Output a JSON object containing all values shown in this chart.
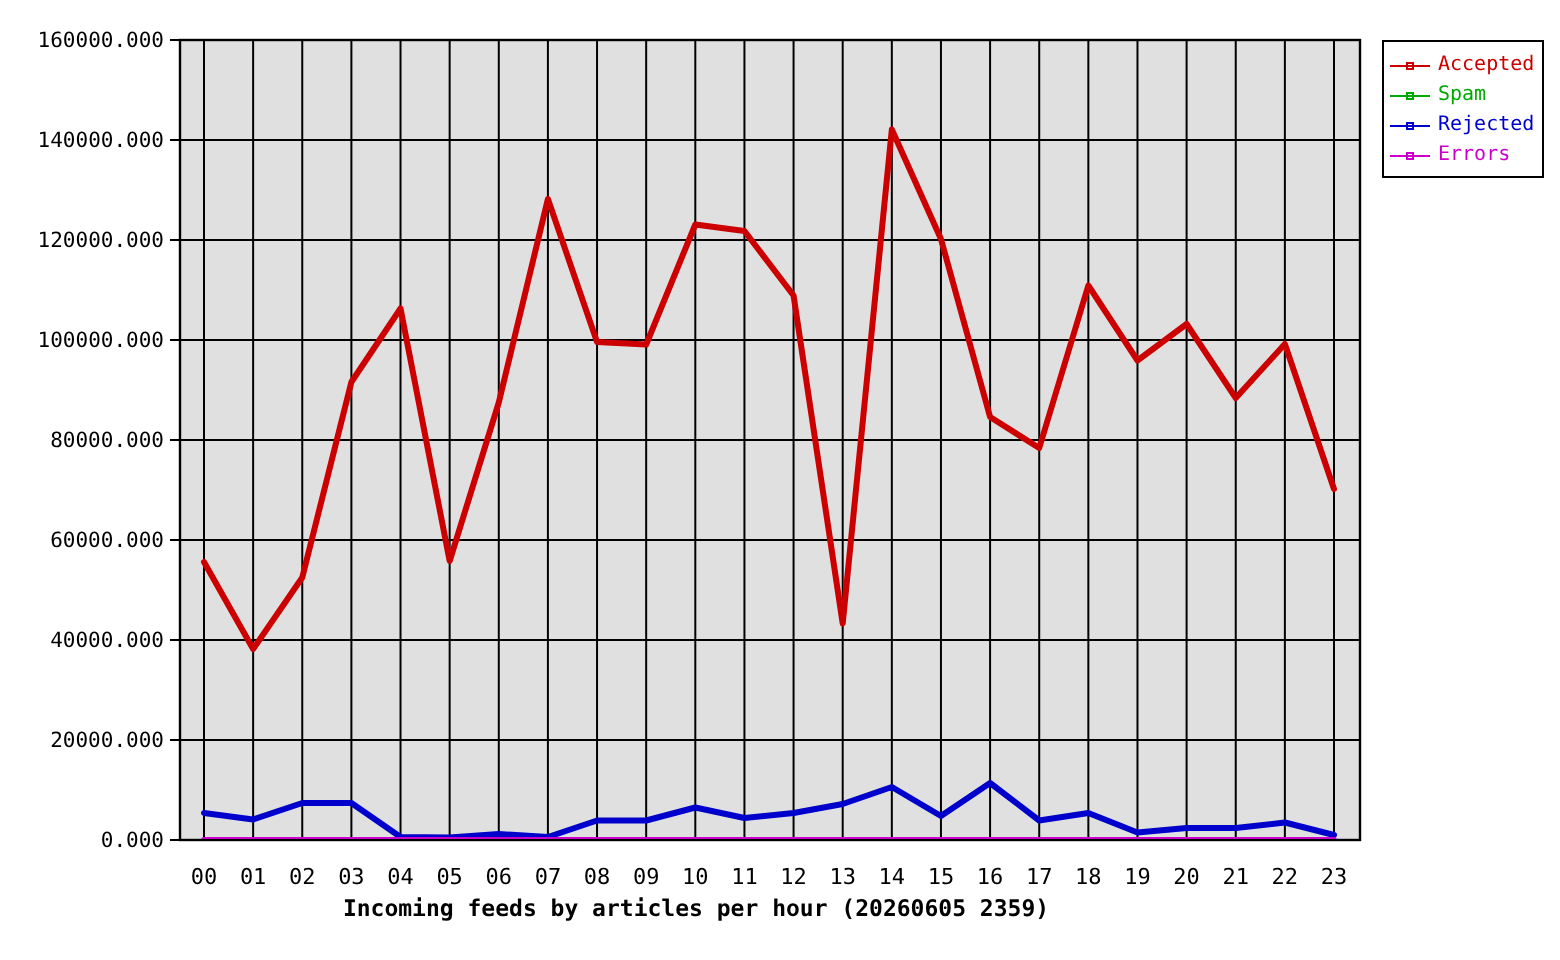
{
  "chart_data": {
    "type": "line",
    "xlabel": "Incoming feeds by articles per hour (20260605 2359)",
    "categories": [
      "00",
      "01",
      "02",
      "03",
      "04",
      "05",
      "06",
      "07",
      "08",
      "09",
      "10",
      "11",
      "12",
      "13",
      "14",
      "15",
      "16",
      "17",
      "18",
      "19",
      "20",
      "21",
      "22",
      "23"
    ],
    "series": [
      {
        "name": "Accepted",
        "color": "#cc0000",
        "values": [
          55600,
          38200,
          52500,
          91600,
          106300,
          55800,
          87500,
          128200,
          99600,
          99100,
          123100,
          121800,
          108900,
          43300,
          142100,
          120200,
          84600,
          78400,
          110900,
          95900,
          103200,
          88400,
          99200,
          70200
        ]
      },
      {
        "name": "Spam",
        "color": "#00aa00",
        "values": [
          null,
          null,
          null,
          null,
          null,
          null,
          null,
          null,
          null,
          null,
          null,
          null,
          null,
          null,
          null,
          null,
          null,
          null,
          null,
          null,
          null,
          null,
          null,
          null
        ]
      },
      {
        "name": "Rejected",
        "color": "#0000cc",
        "values": [
          5400,
          4100,
          7400,
          7400,
          600,
          500,
          1200,
          600,
          3900,
          3900,
          6500,
          4400,
          5400,
          7200,
          10600,
          4800,
          11400,
          3900,
          5400,
          1500,
          2400,
          2400,
          3500,
          1000
        ]
      },
      {
        "name": "Errors",
        "color": "#cc00cc",
        "values": [
          0,
          0,
          0,
          0,
          0,
          0,
          0,
          0,
          0,
          0,
          0,
          0,
          0,
          0,
          0,
          0,
          0,
          0,
          0,
          0,
          0,
          0,
          0,
          0
        ]
      }
    ],
    "ylim": [
      0,
      160000
    ],
    "yticks": [
      {
        "value": 0,
        "label": "0.000"
      },
      {
        "value": 20000,
        "label": "20000.000"
      },
      {
        "value": 40000,
        "label": "40000.000"
      },
      {
        "value": 60000,
        "label": "60000.000"
      },
      {
        "value": 80000,
        "label": "80000.000"
      },
      {
        "value": 100000,
        "label": "100000.000"
      },
      {
        "value": 120000,
        "label": "120000.000"
      },
      {
        "value": 140000,
        "label": "140000.000"
      },
      {
        "value": 160000,
        "label": "160000.000"
      }
    ],
    "grid": true,
    "legend": "top right",
    "line_style": "solid"
  }
}
